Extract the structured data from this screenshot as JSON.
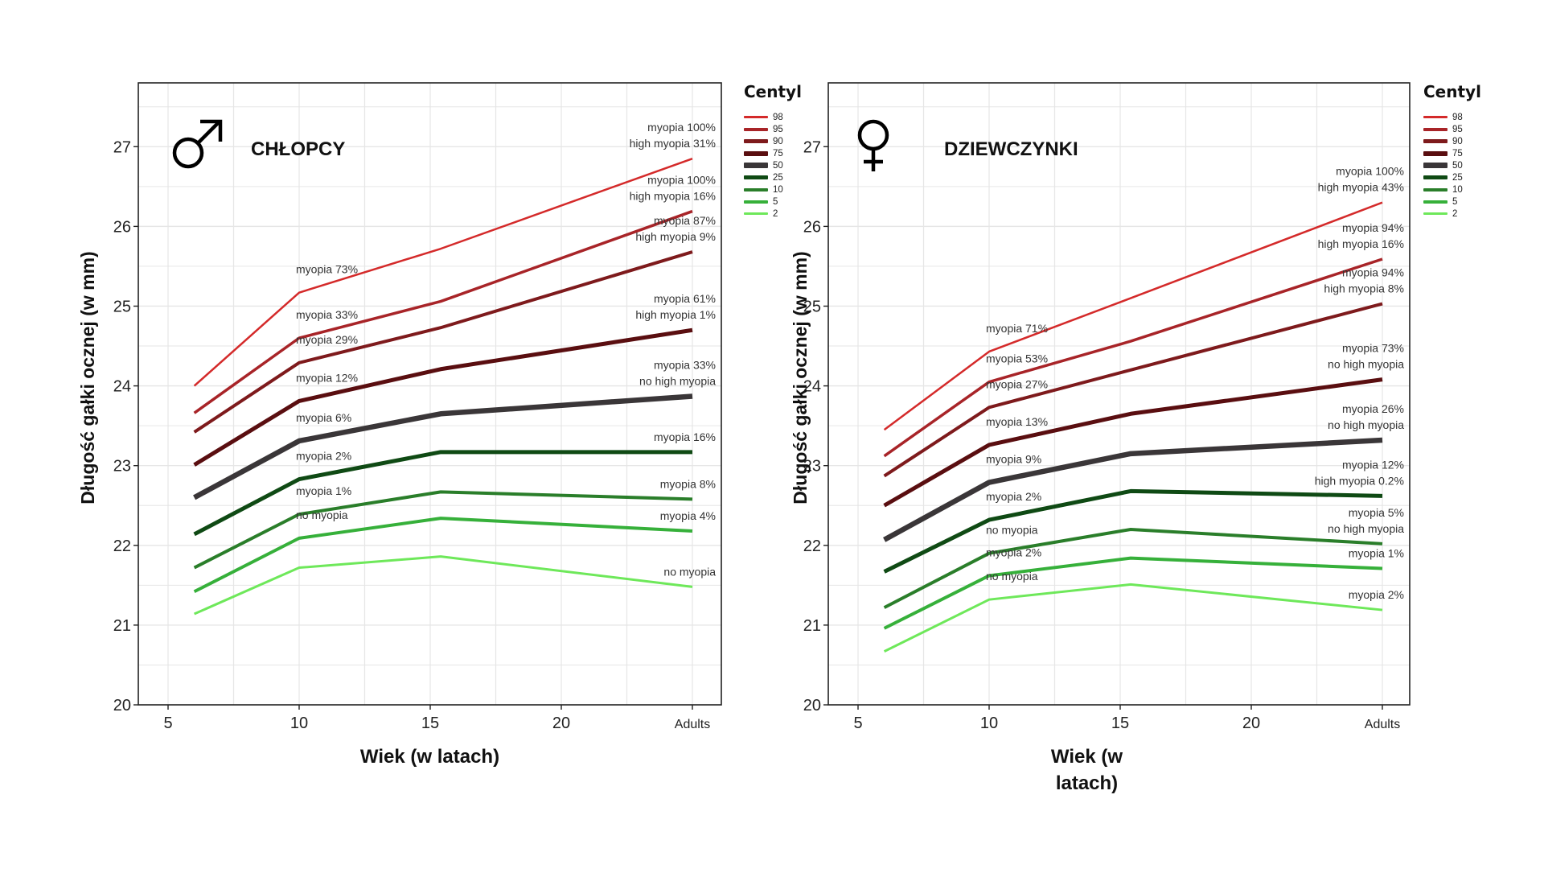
{
  "legend": {
    "title": "Centyl",
    "items": [
      {
        "label": "98",
        "color": "#d42a2a"
      },
      {
        "label": "95",
        "color": "#a82428"
      },
      {
        "label": "90",
        "color": "#7e1a1c"
      },
      {
        "label": "75",
        "color": "#5a0e10"
      },
      {
        "label": "50",
        "color": "#3a3638"
      },
      {
        "label": "25",
        "color": "#0f4a14"
      },
      {
        "label": "10",
        "color": "#2a7e2a"
      },
      {
        "label": "5",
        "color": "#36b03a"
      },
      {
        "label": "2",
        "color": "#6ee85a"
      }
    ]
  },
  "chart_data": [
    {
      "type": "line",
      "title": "CHŁOPCY",
      "symbol": "male",
      "xlabel": "Wiek (w latach)",
      "ylabel": "Długość gałki ocznej (w mm)",
      "x_ticks": [
        "5",
        "10",
        "15",
        "20",
        "Adults"
      ],
      "y_ticks": [
        "20",
        "21",
        "22",
        "23",
        "24",
        "25",
        "26",
        "27"
      ],
      "ylim": [
        20,
        27.8
      ],
      "grid": true,
      "legend_position": "right",
      "x": [
        6,
        10,
        15.4,
        "Adults"
      ],
      "series": [
        {
          "name": "98",
          "values": [
            24.0,
            25.17,
            25.72,
            26.85
          ],
          "annotations": {
            "age10": "myopia 73%",
            "adults": [
              "myopia 100%",
              "high myopia 31%"
            ]
          }
        },
        {
          "name": "95",
          "values": [
            23.66,
            24.6,
            25.06,
            26.19
          ],
          "annotations": {
            "age10": "myopia 33%",
            "adults": [
              "myopia 100%",
              "high myopia 16%"
            ]
          }
        },
        {
          "name": "90",
          "values": [
            23.42,
            24.29,
            24.73,
            25.68
          ],
          "annotations": {
            "age10": "myopia 29%",
            "adults": [
              "myopia 87%",
              "high myopia 9%"
            ]
          }
        },
        {
          "name": "75",
          "values": [
            23.01,
            23.81,
            24.21,
            24.7
          ],
          "annotations": {
            "age10": "myopia 12%",
            "adults": [
              "myopia 61%",
              "high myopia 1%"
            ]
          }
        },
        {
          "name": "50",
          "values": [
            22.6,
            23.31,
            23.65,
            23.87
          ],
          "annotations": {
            "age10": "myopia 6%",
            "adults": [
              "myopia 33%",
              "no high myopia"
            ]
          }
        },
        {
          "name": "25",
          "values": [
            22.14,
            22.83,
            23.17,
            23.17
          ],
          "annotations": {
            "age10": "myopia 2%",
            "adults": [
              "myopia 16%"
            ]
          }
        },
        {
          "name": "10",
          "values": [
            21.72,
            22.39,
            22.67,
            22.58
          ],
          "annotations": {
            "age10": "myopia 1%",
            "adults": [
              "myopia 8%"
            ]
          }
        },
        {
          "name": "5",
          "values": [
            21.42,
            22.09,
            22.34,
            22.18
          ],
          "annotations": {
            "age10": "no myopia",
            "adults": [
              "myopia 4%"
            ]
          }
        },
        {
          "name": "2",
          "values": [
            21.14,
            21.72,
            21.86,
            21.48
          ],
          "annotations": {
            "age10": "",
            "adults": [
              "no myopia"
            ]
          }
        }
      ]
    },
    {
      "type": "line",
      "title": "DZIEWCZYNKI",
      "symbol": "female",
      "xlabel": "Wiek (w latach)",
      "ylabel": "Długość gałki ocznej (w mm)",
      "x_ticks": [
        "5",
        "10",
        "15",
        "20",
        "Adults"
      ],
      "y_ticks": [
        "20",
        "21",
        "22",
        "23",
        "24",
        "25",
        "26",
        "27"
      ],
      "ylim": [
        20,
        27.8
      ],
      "grid": true,
      "legend_position": "right",
      "x": [
        6,
        10,
        15.4,
        "Adults"
      ],
      "series": [
        {
          "name": "98",
          "values": [
            23.45,
            24.43,
            25.1,
            26.3
          ],
          "annotations": {
            "age10": "myopia 71%",
            "adults": [
              "myopia 100%",
              "high myopia 43%"
            ]
          }
        },
        {
          "name": "95",
          "values": [
            23.12,
            24.05,
            24.56,
            25.59
          ],
          "annotations": {
            "age10": "myopia 53%",
            "adults": [
              "myopia 94%",
              "high myopia 16%"
            ]
          }
        },
        {
          "name": "90",
          "values": [
            22.87,
            23.73,
            24.2,
            25.03
          ],
          "annotations": {
            "age10": "myopia 27%",
            "adults": [
              "myopia 94%",
              "high myopia 8%"
            ]
          }
        },
        {
          "name": "75",
          "values": [
            22.5,
            23.26,
            23.65,
            24.08
          ],
          "annotations": {
            "age10": "myopia 13%",
            "adults": [
              "myopia 73%",
              "no high myopia"
            ]
          }
        },
        {
          "name": "50",
          "values": [
            22.07,
            22.79,
            23.15,
            23.32
          ],
          "annotations": {
            "age10": "myopia 9%",
            "adults": [
              "myopia 26%",
              "no high myopia"
            ]
          }
        },
        {
          "name": "25",
          "values": [
            21.67,
            22.32,
            22.68,
            22.62
          ],
          "annotations": {
            "age10": "myopia 2%",
            "adults": [
              "myopia 12%",
              "high myopia 0.2%"
            ]
          }
        },
        {
          "name": "10",
          "values": [
            21.22,
            21.9,
            22.2,
            22.02
          ],
          "annotations": {
            "age10": "no myopia",
            "adults": [
              "myopia 5%",
              "no high myopia"
            ]
          }
        },
        {
          "name": "5",
          "values": [
            20.96,
            21.62,
            21.84,
            21.71
          ],
          "annotations": {
            "age10": "myopia 2%",
            "adults": [
              "myopia 1%"
            ]
          }
        },
        {
          "name": "2",
          "values": [
            20.67,
            21.32,
            21.51,
            21.19
          ],
          "annotations": {
            "age10": "no myopia",
            "adults": [
              "myopia 2%"
            ]
          }
        }
      ]
    }
  ]
}
